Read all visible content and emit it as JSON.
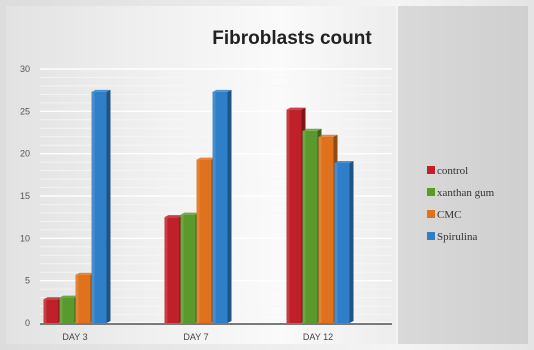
{
  "chart_data": {
    "type": "bar",
    "title": "Fibroblasts count",
    "xlabel": "",
    "ylabel": "",
    "categories": [
      "DAY 3",
      "DAY 7",
      "DAY 12"
    ],
    "yticks": [
      "0",
      "5",
      "10",
      "15",
      "20",
      "25",
      "30"
    ],
    "ylim": [
      0,
      30
    ],
    "grid": true,
    "legend_position": "right",
    "series": [
      {
        "name": "control",
        "color": "#c0202a",
        "values": [
          2.8,
          12.5,
          25.2
        ]
      },
      {
        "name": "xanthan gum",
        "color": "#5a9a2c",
        "values": [
          3.0,
          12.8,
          22.7
        ]
      },
      {
        "name": "CMC",
        "color": "#e0721e",
        "values": [
          5.7,
          19.3,
          22.0
        ]
      },
      {
        "name": "Spirulina",
        "color": "#2f7fc8",
        "values": [
          27.3,
          27.3,
          18.9
        ]
      }
    ]
  }
}
